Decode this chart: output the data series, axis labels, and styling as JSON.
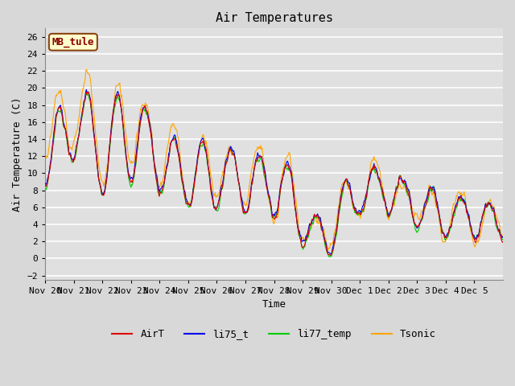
{
  "title": "Air Temperatures",
  "ylabel": "Air Temperature (C)",
  "xlabel": "Time",
  "ylim": [
    -2.5,
    27
  ],
  "yticks": [
    -2,
    0,
    2,
    4,
    6,
    8,
    10,
    12,
    14,
    16,
    18,
    20,
    22,
    24,
    26
  ],
  "xtick_labels": [
    "Nov 20",
    "Nov 21",
    "Nov 22",
    "Nov 23",
    "Nov 24",
    "Nov 25",
    "Nov 26",
    "Nov 27",
    "Nov 28",
    "Nov 29",
    "Nov 30",
    "Dec 1",
    "Dec 2",
    "Dec 3",
    "Dec 4",
    "Dec 5"
  ],
  "series": {
    "AirT": {
      "color": "#dd0000",
      "linewidth": 0.8
    },
    "li75_t": {
      "color": "#0000ee",
      "linewidth": 0.8
    },
    "li77_temp": {
      "color": "#00cc00",
      "linewidth": 0.8
    },
    "Tsonic": {
      "color": "#ffa500",
      "linewidth": 0.8
    }
  },
  "annotation_text": "MB_tule",
  "annotation_facecolor": "#ffffcc",
  "annotation_edgecolor": "#8b4513",
  "annotation_textcolor": "#8b0000",
  "plot_bg": "#e0e0e0",
  "fig_bg": "#d8d8d8",
  "grid_color": "#ffffff",
  "title_fontsize": 11,
  "label_fontsize": 9,
  "tick_fontsize": 8,
  "legend_fontsize": 9
}
